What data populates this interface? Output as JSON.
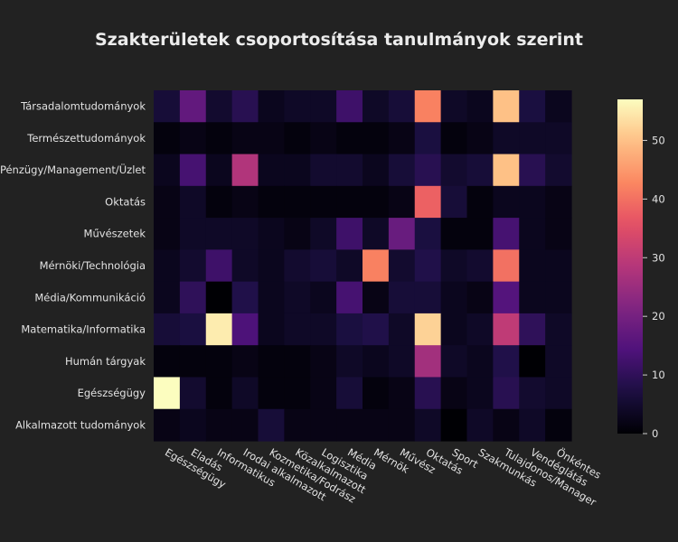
{
  "chart_data": {
    "type": "heatmap",
    "title": "Szakterületek csoportosítása tanulmányok szerint",
    "xlabel": "",
    "ylabel": "",
    "x_categories": [
      "Egészségügy",
      "Eladás",
      "Informatikus",
      "Irodai alkalmazott",
      "Kozmetika/Fodrász",
      "Közalkalmazott",
      "Logisztika",
      "Média",
      "Mérnök",
      "Művész",
      "Oktatás",
      "Sport",
      "Szakmunkás",
      "Tulajdonos/Manager",
      "Vendéglátás",
      "Önkéntes"
    ],
    "y_categories": [
      "Társadalomtudományok",
      "Természettudományok",
      "Pénzügy/Management/Üzlet",
      "Oktatás",
      "Művészetek",
      "Mérnöki/Technológia",
      "Média/Kommunikáció",
      "Matematika/Informatika",
      "Humán tárgyak",
      "Egészségügy",
      "Alkalmazott tudományok"
    ],
    "z": [
      [
        6,
        17,
        5,
        9,
        3,
        4,
        4,
        12,
        4,
        6,
        42,
        4,
        3,
        50,
        7,
        3
      ],
      [
        1,
        2,
        1,
        2,
        2,
        1,
        2,
        1,
        1,
        2,
        7,
        1,
        2,
        4,
        4,
        4
      ],
      [
        3,
        13,
        3,
        28,
        3,
        3,
        5,
        5,
        3,
        6,
        9,
        5,
        6,
        50,
        9,
        5
      ],
      [
        2,
        4,
        1,
        2,
        1,
        1,
        1,
        1,
        1,
        2,
        38,
        6,
        1,
        3,
        3,
        2
      ],
      [
        2,
        4,
        4,
        4,
        3,
        2,
        4,
        12,
        4,
        18,
        7,
        1,
        1,
        13,
        3,
        2
      ],
      [
        3,
        5,
        12,
        4,
        3,
        5,
        6,
        4,
        42,
        5,
        8,
        4,
        5,
        40,
        3,
        3
      ],
      [
        3,
        10,
        0,
        8,
        3,
        4,
        3,
        13,
        2,
        6,
        6,
        3,
        2,
        15,
        3,
        3
      ],
      [
        6,
        7,
        55,
        14,
        3,
        4,
        4,
        7,
        8,
        4,
        52,
        3,
        4,
        30,
        10,
        4
      ],
      [
        1,
        1,
        1,
        2,
        1,
        1,
        2,
        4,
        3,
        4,
        26,
        4,
        3,
        8,
        0,
        4
      ],
      [
        57,
        5,
        1,
        4,
        1,
        1,
        2,
        6,
        1,
        2,
        9,
        2,
        3,
        9,
        5,
        4
      ],
      [
        2,
        3,
        2,
        2,
        6,
        2,
        2,
        2,
        2,
        2,
        4,
        0,
        4,
        2,
        4,
        1
      ]
    ],
    "zmin": 0,
    "zmax": 57,
    "colorbar_ticks": [
      0,
      10,
      20,
      30,
      40,
      50
    ],
    "colorscale": "magma",
    "grid": false,
    "legend": "colorbar-right"
  }
}
